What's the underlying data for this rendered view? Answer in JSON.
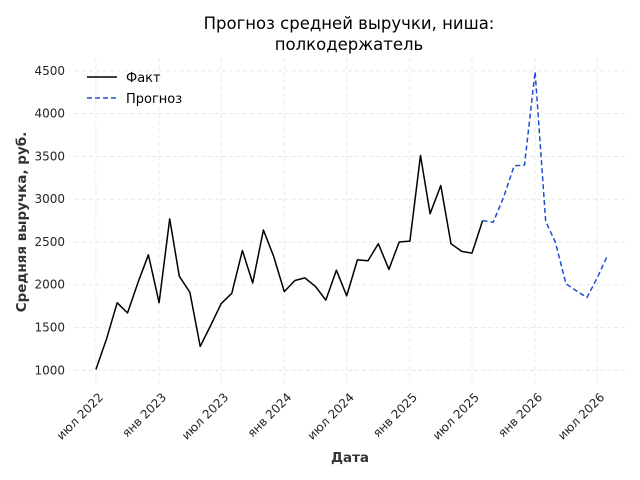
{
  "chart_data": {
    "type": "line",
    "title_lines": [
      "Прогноз средней выручки, ниша:",
      "полкодержатель"
    ],
    "xlabel": "Дата",
    "ylabel": "Средняя выручка, руб.",
    "ylim": [
      840,
      4650
    ],
    "xlim": [
      "2022-05-01",
      "2026-09-20"
    ],
    "x_ticks": [
      {
        "date": "2022-07-01",
        "label": "июл 2022"
      },
      {
        "date": "2023-01-01",
        "label": "янв 2023"
      },
      {
        "date": "2023-07-01",
        "label": "июл 2023"
      },
      {
        "date": "2024-01-01",
        "label": "янв 2024"
      },
      {
        "date": "2024-07-01",
        "label": "июл 2024"
      },
      {
        "date": "2025-01-01",
        "label": "янв 2025"
      },
      {
        "date": "2025-07-01",
        "label": "июл 2025"
      },
      {
        "date": "2026-01-01",
        "label": "янв 2026"
      },
      {
        "date": "2026-07-01",
        "label": "июл 2026"
      }
    ],
    "y_ticks": [
      1000,
      1500,
      2000,
      2500,
      3000,
      3500,
      4000,
      4500
    ],
    "grid": true,
    "legend_position": "top-left",
    "series": [
      {
        "name": "Факт",
        "color": "#000000",
        "style": "solid",
        "points": [
          [
            "2022-07-01",
            1010
          ],
          [
            "2022-08-01",
            1370
          ],
          [
            "2022-09-01",
            1790
          ],
          [
            "2022-10-01",
            1670
          ],
          [
            "2022-11-01",
            2030
          ],
          [
            "2022-12-01",
            2350
          ],
          [
            "2023-01-01",
            1790
          ],
          [
            "2023-02-01",
            2770
          ],
          [
            "2023-03-01",
            2100
          ],
          [
            "2023-04-01",
            1910
          ],
          [
            "2023-05-01",
            1280
          ],
          [
            "2023-06-01",
            1530
          ],
          [
            "2023-07-01",
            1780
          ],
          [
            "2023-08-01",
            1900
          ],
          [
            "2023-09-01",
            2400
          ],
          [
            "2023-10-01",
            2020
          ],
          [
            "2023-11-01",
            2640
          ],
          [
            "2023-12-01",
            2330
          ],
          [
            "2024-01-01",
            1920
          ],
          [
            "2024-02-01",
            2050
          ],
          [
            "2024-03-01",
            2080
          ],
          [
            "2024-04-01",
            1980
          ],
          [
            "2024-05-01",
            1820
          ],
          [
            "2024-06-01",
            2170
          ],
          [
            "2024-07-01",
            1870
          ],
          [
            "2024-08-01",
            2290
          ],
          [
            "2024-09-01",
            2280
          ],
          [
            "2024-10-01",
            2480
          ],
          [
            "2024-11-01",
            2180
          ],
          [
            "2024-12-01",
            2500
          ],
          [
            "2025-01-01",
            2510
          ],
          [
            "2025-02-01",
            3510
          ],
          [
            "2025-03-01",
            2830
          ],
          [
            "2025-04-01",
            3160
          ],
          [
            "2025-05-01",
            2480
          ],
          [
            "2025-06-01",
            2390
          ],
          [
            "2025-07-01",
            2370
          ],
          [
            "2025-08-01",
            2750
          ]
        ]
      },
      {
        "name": "Прогноз",
        "color": "#1f4fd1",
        "style": "dashed",
        "points": [
          [
            "2025-08-01",
            2750
          ],
          [
            "2025-09-01",
            2730
          ],
          [
            "2025-10-01",
            3020
          ],
          [
            "2025-11-01",
            3390
          ],
          [
            "2025-12-01",
            3400
          ],
          [
            "2026-01-01",
            4490
          ],
          [
            "2026-02-01",
            2740
          ],
          [
            "2026-03-01",
            2500
          ],
          [
            "2026-04-01",
            2010
          ],
          [
            "2026-05-01",
            1930
          ],
          [
            "2026-06-01",
            1850
          ],
          [
            "2026-07-01",
            2080
          ],
          [
            "2026-08-01",
            2350
          ]
        ]
      }
    ]
  }
}
